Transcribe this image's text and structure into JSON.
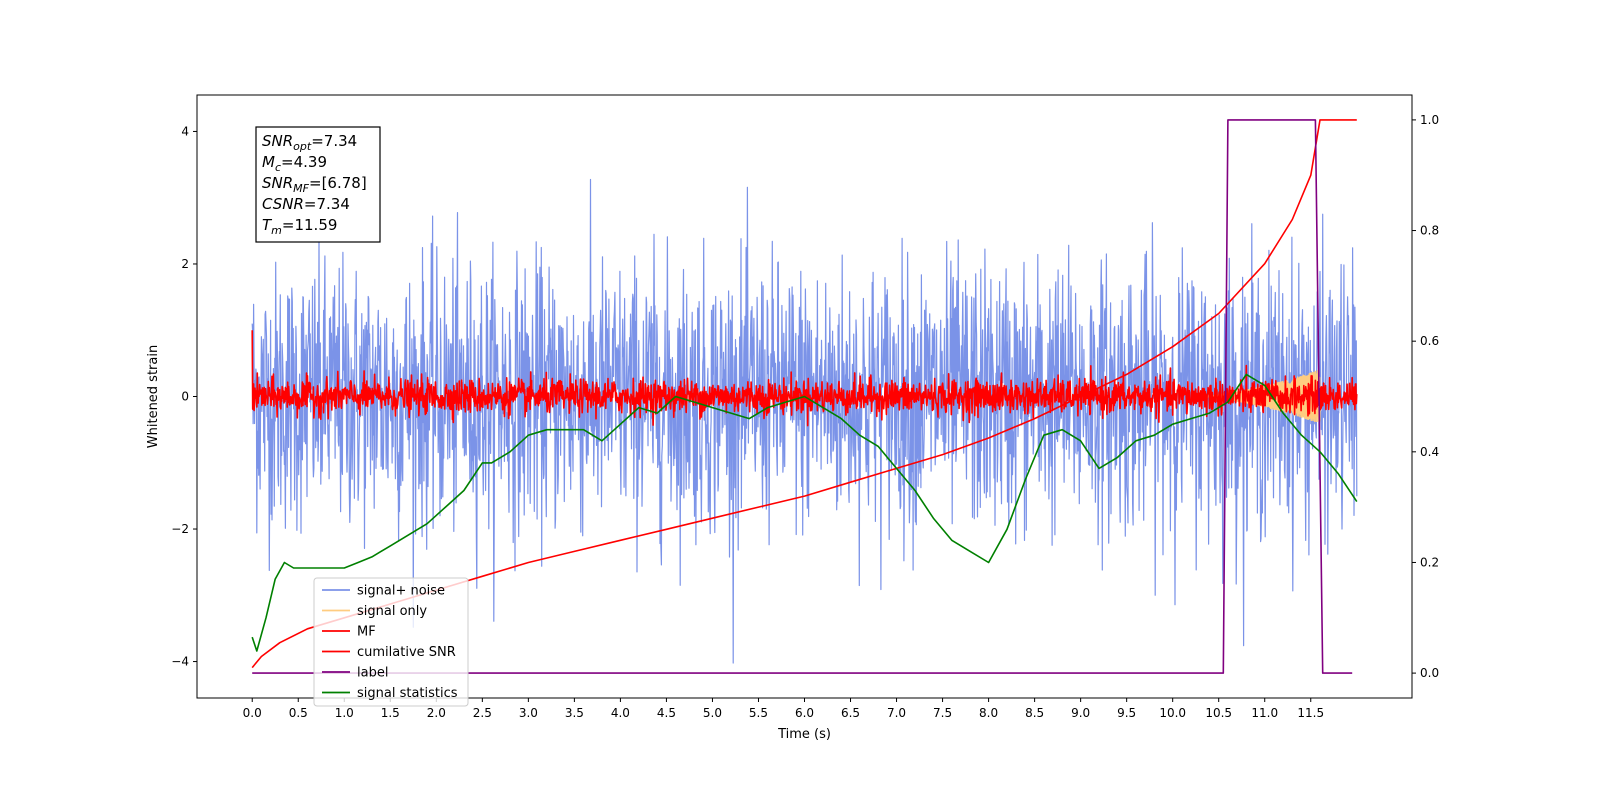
{
  "chart_data": {
    "type": "line",
    "xlabel": "Time (s)",
    "ylabel": "Whitened strain",
    "xlim": [
      -0.6,
      12.6
    ],
    "ylim": [
      -4.55,
      4.55
    ],
    "y2lim": [
      -0.045,
      1.045
    ],
    "xticks": [
      0.0,
      0.5,
      1.0,
      1.5,
      2.0,
      2.5,
      3.0,
      3.5,
      4.0,
      4.5,
      5.0,
      5.5,
      6.0,
      6.5,
      7.0,
      7.5,
      8.0,
      8.5,
      9.0,
      9.5,
      10.0,
      10.5,
      11.0,
      11.5
    ],
    "xtick_labels": [
      "0.0",
      "0.5",
      "1.0",
      "1.5",
      "2.0",
      "2.5",
      "3.0",
      "3.5",
      "4.0",
      "4.5",
      "5.0",
      "5.5",
      "6.0",
      "6.5",
      "7.0",
      "7.5",
      "8.0",
      "8.5",
      "9.0",
      "9.5",
      "10.0",
      "10.5",
      "11.0",
      "11.5"
    ],
    "yticks": [
      -4,
      -2,
      0,
      2,
      4
    ],
    "ytick_labels": [
      "−4",
      "−2",
      "0",
      "2",
      "4"
    ],
    "y2ticks": [
      0.0,
      0.2,
      0.4,
      0.6,
      0.8,
      1.0
    ],
    "y2tick_labels": [
      "0.0",
      "0.2",
      "0.4",
      "0.6",
      "0.8",
      "1.0"
    ],
    "grid": false,
    "legend_position": "bottom-left",
    "annotation": {
      "lines": [
        {
          "base": "SNR",
          "sub": "opt",
          "rest": "=7.34"
        },
        {
          "base": "M",
          "sub": "c",
          "rest": "=4.39"
        },
        {
          "base": "SNR",
          "sub": "MF",
          "rest": "=[6.78]"
        },
        {
          "base": "CSNR",
          "sub": "",
          "rest": "=7.34"
        },
        {
          "base": "T",
          "sub": "m",
          "rest": "=11.59"
        }
      ]
    },
    "series": [
      {
        "name": "signal+ noise",
        "color": "#7b93e8",
        "axis": "left",
        "kind": "noise",
        "x_range": [
          0,
          12.0
        ],
        "std": 1.0
      },
      {
        "name": "signal only",
        "color": "#ffcc80",
        "axis": "left",
        "kind": "chirp",
        "x_range": [
          10.3,
          11.6
        ],
        "max_amplitude": 0.4
      },
      {
        "name": "MF",
        "color": "#ff0000",
        "axis": "left",
        "kind": "noise",
        "x_range": [
          0,
          12.0
        ],
        "std": 0.13
      },
      {
        "name": "cumilative SNR",
        "color": "#ff0000",
        "axis": "right",
        "x": [
          0.0,
          0.1,
          0.3,
          0.6,
          1.0,
          1.5,
          2.0,
          2.5,
          3.0,
          3.5,
          4.0,
          4.5,
          5.0,
          5.5,
          6.0,
          6.5,
          7.0,
          7.5,
          8.0,
          8.5,
          9.0,
          9.5,
          10.0,
          10.5,
          11.0,
          11.3,
          11.5,
          11.6,
          12.0
        ],
        "y": [
          0.01,
          0.03,
          0.055,
          0.08,
          0.1,
          0.125,
          0.15,
          0.175,
          0.2,
          0.22,
          0.24,
          0.26,
          0.28,
          0.3,
          0.32,
          0.345,
          0.37,
          0.395,
          0.425,
          0.46,
          0.5,
          0.54,
          0.59,
          0.65,
          0.74,
          0.82,
          0.9,
          1.0,
          1.0
        ]
      },
      {
        "name": "label",
        "color": "#800080",
        "axis": "right",
        "x": [
          0.0,
          10.55,
          10.6,
          11.55,
          11.63,
          11.95
        ],
        "y": [
          0.0,
          0.0,
          1.0,
          1.0,
          0.0,
          0.0
        ]
      },
      {
        "name": "signal statistics",
        "color": "#008000",
        "axis": "right",
        "x": [
          0.0,
          0.05,
          0.15,
          0.25,
          0.35,
          0.45,
          0.55,
          0.7,
          0.85,
          1.0,
          1.15,
          1.3,
          1.5,
          1.7,
          1.9,
          2.1,
          2.3,
          2.5,
          2.6,
          2.8,
          3.0,
          3.2,
          3.4,
          3.6,
          3.8,
          4.0,
          4.2,
          4.4,
          4.6,
          4.8,
          5.0,
          5.2,
          5.4,
          5.6,
          5.8,
          6.0,
          6.2,
          6.4,
          6.6,
          6.8,
          7.0,
          7.2,
          7.4,
          7.6,
          7.8,
          8.0,
          8.2,
          8.4,
          8.6,
          8.8,
          9.0,
          9.2,
          9.4,
          9.6,
          9.8,
          10.0,
          10.2,
          10.4,
          10.6,
          10.8,
          11.0,
          11.2,
          11.4,
          11.6,
          11.8,
          12.0
        ],
        "y": [
          0.065,
          0.04,
          0.1,
          0.17,
          0.2,
          0.19,
          0.19,
          0.19,
          0.19,
          0.19,
          0.2,
          0.21,
          0.23,
          0.25,
          0.27,
          0.3,
          0.33,
          0.38,
          0.38,
          0.4,
          0.43,
          0.44,
          0.44,
          0.44,
          0.42,
          0.45,
          0.48,
          0.47,
          0.5,
          0.49,
          0.48,
          0.47,
          0.46,
          0.48,
          0.49,
          0.5,
          0.48,
          0.46,
          0.43,
          0.41,
          0.37,
          0.33,
          0.28,
          0.24,
          0.22,
          0.2,
          0.26,
          0.35,
          0.43,
          0.44,
          0.42,
          0.37,
          0.39,
          0.42,
          0.43,
          0.45,
          0.46,
          0.47,
          0.49,
          0.54,
          0.52,
          0.47,
          0.43,
          0.4,
          0.36,
          0.31
        ]
      }
    ]
  }
}
